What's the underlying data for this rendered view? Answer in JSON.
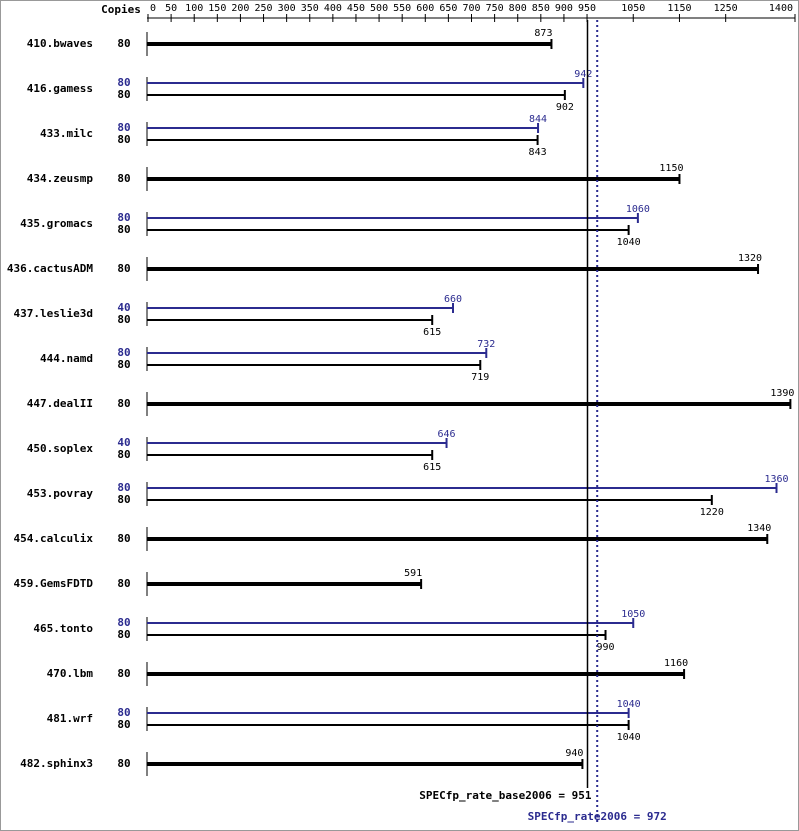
{
  "chart_data": {
    "type": "spec-bar",
    "copies_header": "Copies",
    "categories": [
      "410.bwaves",
      "416.gamess",
      "433.milc",
      "434.zeusmp",
      "435.gromacs",
      "436.cactusADM",
      "437.leslie3d",
      "444.namd",
      "447.dealII",
      "450.soplex",
      "453.povray",
      "454.calculix",
      "459.GemsFDTD",
      "465.tonto",
      "470.lbm",
      "481.wrf",
      "482.sphinx3"
    ],
    "series": [
      {
        "color": "#2b2b8f",
        "copies": [
          null,
          80,
          80,
          null,
          80,
          null,
          40,
          80,
          null,
          40,
          80,
          null,
          null,
          80,
          null,
          80,
          null
        ],
        "values": [
          null,
          942,
          844,
          null,
          1060,
          null,
          660,
          732,
          null,
          646,
          1360,
          null,
          null,
          1050,
          null,
          1040,
          null
        ]
      },
      {
        "color": "#000000",
        "copies": [
          80,
          80,
          80,
          80,
          80,
          80,
          80,
          80,
          80,
          80,
          80,
          80,
          80,
          80,
          80,
          80,
          80
        ],
        "values": [
          873,
          902,
          843,
          1150,
          1040,
          1320,
          615,
          719,
          1390,
          615,
          1220,
          1340,
          591,
          990,
          1160,
          1040,
          940
        ]
      }
    ],
    "xlim": [
      0,
      1400
    ],
    "xticks": [
      0,
      50,
      100,
      150,
      200,
      250,
      300,
      350,
      400,
      450,
      500,
      550,
      600,
      650,
      700,
      750,
      800,
      850,
      900,
      950,
      1050,
      1150,
      1250,
      1400
    ],
    "reference_lines": [
      {
        "label": "SPECfp_rate_base2006 = 951",
        "value": 951,
        "color": "#000000",
        "dashed": false
      },
      {
        "label": "SPECfp_rate2006 = 972",
        "value": 972,
        "color": "#2b2b8f",
        "dashed": true
      }
    ]
  }
}
